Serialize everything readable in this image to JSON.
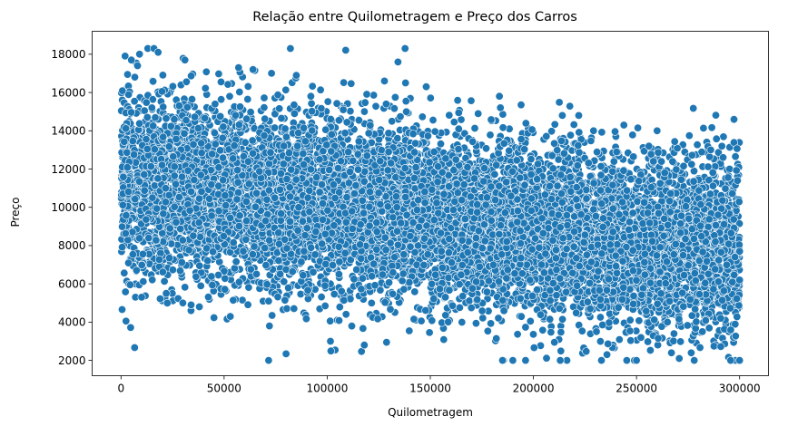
{
  "chart_data": {
    "type": "scatter",
    "title": "Relação entre Quilometragem e Preço dos Carros",
    "xlabel": "Quilometragem",
    "ylabel": "Preço",
    "xlim": [
      -14000,
      314000
    ],
    "ylim": [
      1200,
      19200
    ],
    "xticks": [
      0,
      50000,
      100000,
      150000,
      200000,
      250000,
      300000
    ],
    "yticks": [
      2000,
      4000,
      6000,
      8000,
      10000,
      12000,
      14000,
      16000,
      18000
    ],
    "grid": false,
    "legend": "none",
    "series": [
      {
        "color": "#1f77b4",
        "marker": "circle",
        "n_points": 10000,
        "x_range": [
          0,
          300000
        ],
        "y_clip": [
          2000,
          18300
        ],
        "trend": {
          "slope_per_km": -0.0125,
          "intercept": 11300,
          "spread_sd": 2300
        },
        "points": [
          {
            "x": 2000,
            "y": 17900
          },
          {
            "x": 5000,
            "y": 17700
          },
          {
            "x": 8000,
            "y": 17400
          },
          {
            "x": 9000,
            "y": 18000
          },
          {
            "x": 13000,
            "y": 18300
          },
          {
            "x": 16000,
            "y": 18300
          },
          {
            "x": 18000,
            "y": 18100
          },
          {
            "x": 31000,
            "y": 17700
          },
          {
            "x": 57000,
            "y": 17300
          },
          {
            "x": 64000,
            "y": 17200
          },
          {
            "x": 73000,
            "y": 17000
          },
          {
            "x": 85000,
            "y": 16900
          },
          {
            "x": 138000,
            "y": 16500
          },
          {
            "x": 148000,
            "y": 16300
          },
          {
            "x": 7000,
            "y": 5300
          },
          {
            "x": 10000,
            "y": 5300
          },
          {
            "x": 30000,
            "y": 5000
          },
          {
            "x": 34000,
            "y": 4900
          },
          {
            "x": 38000,
            "y": 4800
          },
          {
            "x": 53000,
            "y": 4300
          },
          {
            "x": 72000,
            "y": 3800
          },
          {
            "x": 118000,
            "y": 2800
          },
          {
            "x": 184000,
            "y": 15200
          },
          {
            "x": 214000,
            "y": 14800
          },
          {
            "x": 222000,
            "y": 14800
          },
          {
            "x": 260000,
            "y": 14000
          },
          {
            "x": 256000,
            "y": 13200
          },
          {
            "x": 286000,
            "y": 13000
          },
          {
            "x": 292000,
            "y": 12600
          },
          {
            "x": 299000,
            "y": 11400
          },
          {
            "x": 300000,
            "y": 7700
          },
          {
            "x": 300000,
            "y": 6200
          },
          {
            "x": 300000,
            "y": 2000
          },
          {
            "x": 185000,
            "y": 2000
          },
          {
            "x": 190000,
            "y": 2000
          },
          {
            "x": 213000,
            "y": 2000
          },
          {
            "x": 233000,
            "y": 2000
          },
          {
            "x": 250000,
            "y": 2000
          },
          {
            "x": 278000,
            "y": 2000
          }
        ]
      }
    ]
  }
}
